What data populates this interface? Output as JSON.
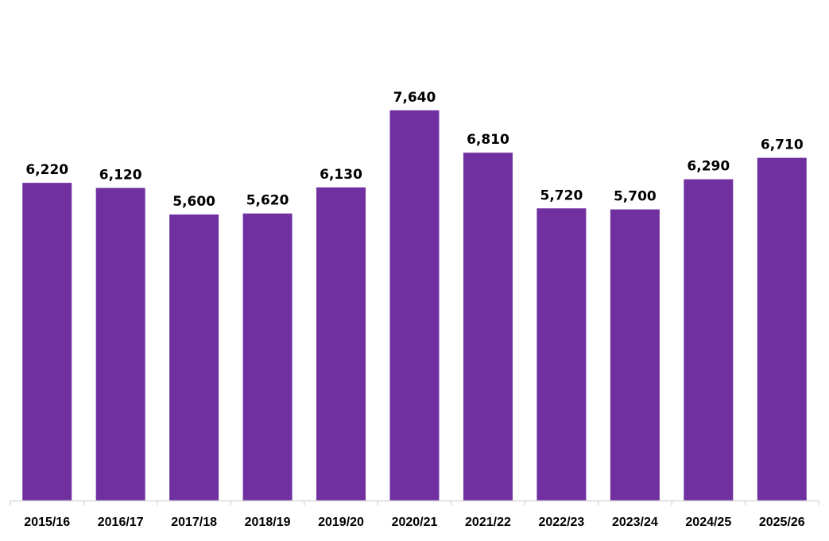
{
  "chart_data": {
    "type": "bar",
    "title": "",
    "xlabel": "",
    "ylabel": "",
    "categories": [
      "2015/16",
      "2016/17",
      "2017/18",
      "2018/19",
      "2019/20",
      "2020/21",
      "2021/22",
      "2022/23",
      "2023/24",
      "2024/25",
      "2025/26"
    ],
    "values": [
      6220,
      6120,
      5600,
      5620,
      6130,
      7640,
      6810,
      5720,
      5700,
      6290,
      6710
    ],
    "data_labels": [
      "6,220",
      "6,120",
      "5,600",
      "5,620",
      "6,130",
      "7,640",
      "6,810",
      "5,720",
      "5,700",
      "6,290",
      "6,710"
    ],
    "ylim": [
      0,
      9800
    ],
    "grid": false,
    "y_axis_visible": false,
    "legend": "none",
    "colors": {
      "bar": "#7030A0",
      "axis": "#D9D9D9"
    }
  }
}
